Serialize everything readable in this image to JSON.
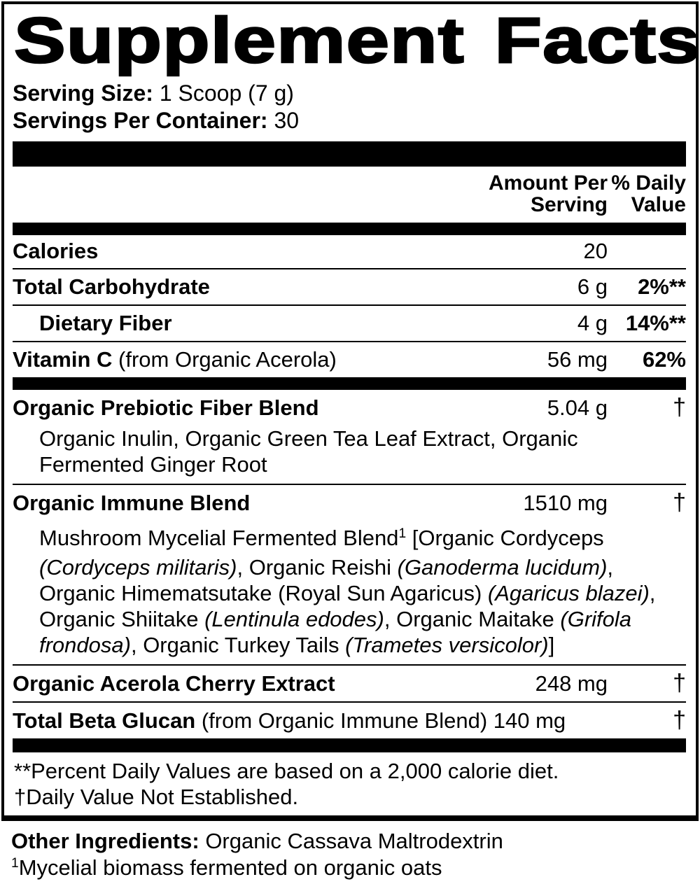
{
  "colors": {
    "ink": "#000000",
    "paper": "#ffffff"
  },
  "title": "Supplement Facts",
  "serving": {
    "size_label": "Serving Size:",
    "size_value": " 1 Scoop (7 g)",
    "per_container_label": "Servings Per Container:",
    "per_container_value": " 30"
  },
  "columns": {
    "amount_line1": "Amount Per",
    "amount_line2": "Serving",
    "dv_line1": "% Daily",
    "dv_line2": "Value"
  },
  "nutrients": {
    "calories": {
      "name": "Calories",
      "amount": "20"
    },
    "carb": {
      "name": "Total Carbohydrate",
      "amount": "6 g",
      "dv": "2%**"
    },
    "fiber": {
      "name": "Dietary Fiber",
      "amount": "4 g",
      "dv": "14%**"
    },
    "vitc": {
      "name": "Vitamin C",
      "note": " (from Organic Acerola)",
      "amount": "56 mg",
      "dv": "62%"
    }
  },
  "blends": {
    "prebiotic": {
      "name": "Organic Prebiotic Fiber Blend",
      "amount": "5.04 g",
      "dv": "†",
      "ingredients": "Organic Inulin, Organic Green Tea Leaf Extract, Organic Fermented Ginger Root"
    },
    "immune": {
      "name": "Organic Immune Blend",
      "amount": "1510 mg",
      "dv": "†",
      "desc": {
        "seg0": "Mushroom Mycelial Fermented Blend",
        "sup": "1",
        "seg1": " [Organic Cordyceps ",
        "it1": "(Cordyceps militaris)",
        "seg2": ", Organic Reishi ",
        "it2": "(Ganoderma lucidum)",
        "seg3": ", Organic Himematsutake (Royal Sun Agaricus) ",
        "it3": "(Agaricus blazei)",
        "seg4": ", Organic Shiitake ",
        "it4": "(Lentinula edodes)",
        "seg5": ", Organic Maitake ",
        "it5": "(Grifola frondosa)",
        "seg6": ", Organic Turkey Tails ",
        "it6": "(Trametes versicolor)",
        "seg7": "]"
      }
    },
    "acerola": {
      "name": "Organic Acerola Cherry Extract",
      "amount": "248 mg",
      "dv": "†"
    },
    "beta_glucan": {
      "name": "Total Beta Glucan",
      "note": " (from Organic Immune Blend) 140 mg",
      "dv": "†"
    }
  },
  "footnotes": {
    "dv_note": "**Percent Daily Values are based on a 2,000 calorie diet.",
    "dagger_note": "†Daily Value Not Established."
  },
  "other": {
    "label": "Other Ingredients:",
    "value": " Organic Cassava Maltrodextrin",
    "footnote_sup": "1",
    "footnote_text": "Mycelial biomass fermented on organic oats"
  }
}
